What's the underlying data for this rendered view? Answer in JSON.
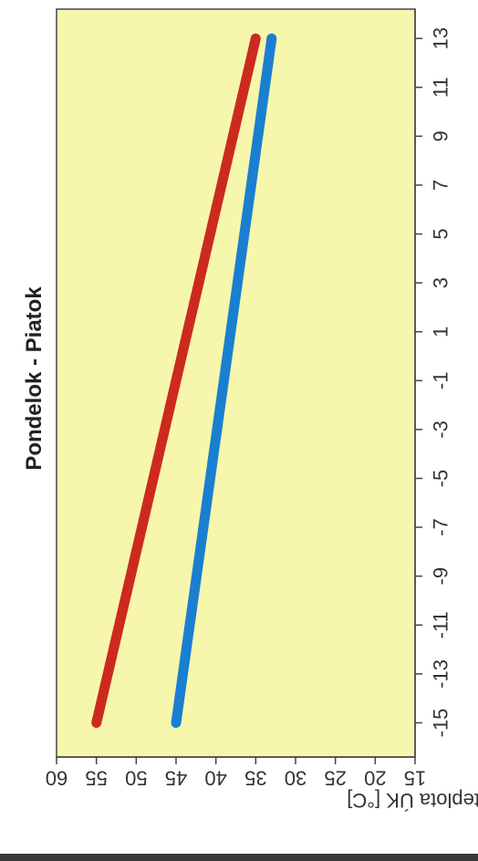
{
  "chart_data": {
    "type": "line",
    "title": "Pondelok - Piatok",
    "ylabel": "max. teplota ÚK [°C]",
    "xlabel": "",
    "x_ticks": [
      "-15",
      "-13",
      "-11",
      "-9",
      "-7",
      "-5",
      "-3",
      "-1",
      "1",
      "3",
      "5",
      "7",
      "9",
      "11",
      "13"
    ],
    "y_ticks": [
      "60",
      "55",
      "50",
      "45",
      "40",
      "35",
      "30",
      "25",
      "20",
      "15"
    ],
    "xlim": [
      -16.4,
      14.2
    ],
    "ylim": [
      15,
      60
    ],
    "grid": false,
    "series": [
      {
        "color": "#cc2a1f",
        "x": [
          -15,
          13
        ],
        "y": [
          55,
          35
        ]
      },
      {
        "color": "#1a7fd0",
        "x": [
          -15,
          13
        ],
        "y": [
          45,
          33
        ]
      }
    ]
  }
}
